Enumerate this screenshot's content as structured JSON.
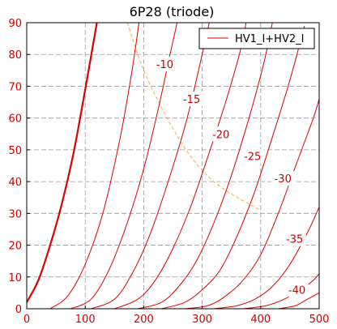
{
  "chart_data": {
    "type": "line",
    "title": "6P28 (triode)",
    "xlabel": "",
    "ylabel": "",
    "xlim": [
      0,
      500
    ],
    "ylim": [
      0,
      90
    ],
    "xticks": [
      0,
      100,
      200,
      300,
      400,
      500
    ],
    "yticks": [
      0,
      10,
      20,
      30,
      40,
      50,
      60,
      70,
      80,
      90
    ],
    "grid": true,
    "legend": {
      "position": "top-right",
      "entries": [
        "HV1_I+HV2_I"
      ]
    },
    "colors": {
      "curve": "#dd0000",
      "tick_label": "#cc0000",
      "load_line": "#f0b030",
      "grid": "#999999"
    },
    "curves": [
      {
        "label": "",
        "bold": true,
        "points": [
          [
            0,
            2
          ],
          [
            20,
            9
          ],
          [
            40,
            20
          ],
          [
            60,
            33
          ],
          [
            80,
            49
          ],
          [
            100,
            69
          ],
          [
            120,
            90
          ]
        ]
      },
      {
        "label": "",
        "points": [
          [
            40,
            0
          ],
          [
            70,
            4
          ],
          [
            100,
            14
          ],
          [
            130,
            30
          ],
          [
            160,
            54
          ],
          [
            180,
            75
          ],
          [
            192,
            90
          ]
        ]
      },
      {
        "label": "-10",
        "points": [
          [
            75,
            0
          ],
          [
            110,
            3
          ],
          [
            140,
            12
          ],
          [
            170,
            26
          ],
          [
            200,
            44
          ],
          [
            225,
            63
          ],
          [
            245,
            80
          ],
          [
            257,
            90
          ]
        ]
      },
      {
        "label": "-15",
        "points": [
          [
            110,
            0
          ],
          [
            150,
            3
          ],
          [
            180,
            11
          ],
          [
            210,
            23
          ],
          [
            240,
            39
          ],
          [
            270,
            57
          ],
          [
            290,
            72
          ],
          [
            312,
            90
          ]
        ]
      },
      {
        "label": "-20",
        "points": [
          [
            150,
            0
          ],
          [
            190,
            3
          ],
          [
            220,
            9
          ],
          [
            250,
            19
          ],
          [
            280,
            32
          ],
          [
            310,
            48
          ],
          [
            340,
            65
          ],
          [
            365,
            81
          ],
          [
            375,
            90
          ]
        ]
      },
      {
        "label": "-25",
        "points": [
          [
            190,
            0
          ],
          [
            230,
            2
          ],
          [
            260,
            7
          ],
          [
            290,
            15
          ],
          [
            320,
            27
          ],
          [
            350,
            42
          ],
          [
            380,
            60
          ],
          [
            405,
            77
          ],
          [
            420,
            90
          ]
        ]
      },
      {
        "label": "-30",
        "points": [
          [
            230,
            0
          ],
          [
            270,
            2
          ],
          [
            300,
            6
          ],
          [
            330,
            12
          ],
          [
            360,
            23
          ],
          [
            390,
            37
          ],
          [
            420,
            54
          ],
          [
            450,
            72
          ],
          [
            475,
            89
          ]
        ]
      },
      {
        "label": "-35",
        "points": [
          [
            270,
            0
          ],
          [
            310,
            1
          ],
          [
            340,
            4
          ],
          [
            370,
            9
          ],
          [
            400,
            17
          ],
          [
            430,
            30
          ],
          [
            460,
            45
          ],
          [
            490,
            60
          ],
          [
            500,
            66
          ]
        ]
      },
      {
        "label": "-40",
        "points": [
          [
            320,
            0
          ],
          [
            360,
            1
          ],
          [
            390,
            3
          ],
          [
            420,
            7
          ],
          [
            450,
            14
          ],
          [
            480,
            24
          ],
          [
            500,
            32
          ]
        ]
      },
      {
        "label": "",
        "points": [
          [
            370,
            0
          ],
          [
            410,
            1
          ],
          [
            440,
            3
          ],
          [
            470,
            6
          ],
          [
            490,
            9
          ],
          [
            500,
            11
          ]
        ]
      },
      {
        "label": "",
        "points": [
          [
            430,
            0
          ],
          [
            460,
            1
          ],
          [
            480,
            3
          ],
          [
            500,
            5
          ]
        ]
      }
    ],
    "load_line": [
      [
        172,
        90
      ],
      [
        200,
        75
      ],
      [
        240,
        60
      ],
      [
        280,
        48
      ],
      [
        320,
        40
      ],
      [
        360,
        35
      ],
      [
        400,
        31
      ]
    ],
    "curve_labels": [
      {
        "text": "-10",
        "x": 236,
        "y": 77
      },
      {
        "text": "-15",
        "x": 282,
        "y": 66
      },
      {
        "text": "-20",
        "x": 332,
        "y": 55
      },
      {
        "text": "-25",
        "x": 386,
        "y": 48
      },
      {
        "text": "-30",
        "x": 438,
        "y": 41
      },
      {
        "text": "-35",
        "x": 458,
        "y": 22
      },
      {
        "text": "-40",
        "x": 462,
        "y": 6
      }
    ]
  }
}
